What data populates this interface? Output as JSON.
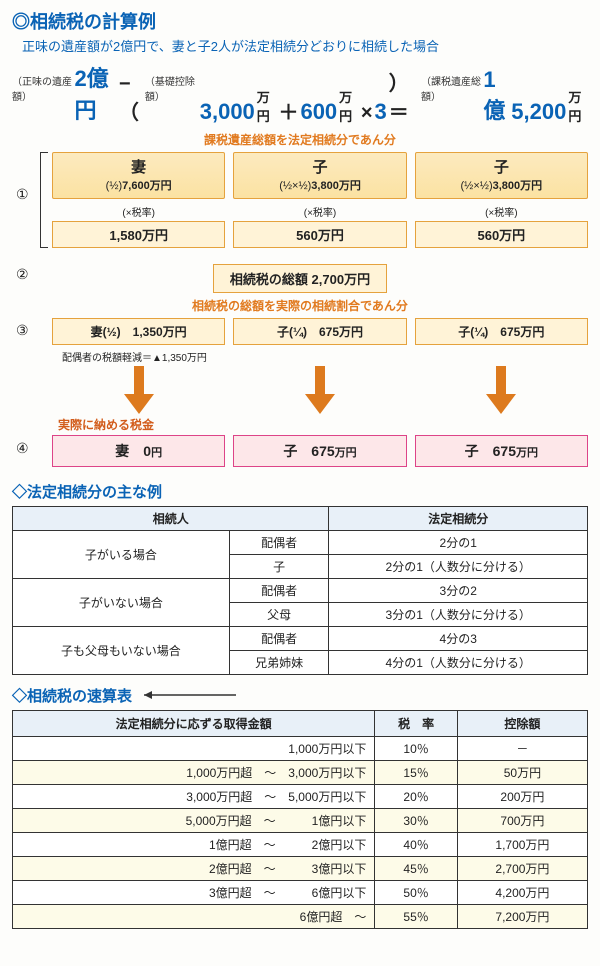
{
  "title": "◎相続税の計算例",
  "subtitle": "正味の遺産額が2億円で、妻と子2人が法定相続分どおりに相続した場合",
  "formula": {
    "label_net": "（正味の遺産額）",
    "label_deduction": "（基礎控除額）",
    "label_taxable": "（課税遺産総額）",
    "net": "2億円",
    "minus": "−（",
    "base": "3,000",
    "base_u": "万円",
    "plus": "＋",
    "per": "600",
    "per_u": "万円",
    "times": "×",
    "heirs": "3",
    "close": "）＝",
    "result_oku": "1億",
    "result_man": "5,200",
    "result_u": "万円"
  },
  "step1": {
    "caption": "課税遺産総額を法定相続分であん分",
    "heirs": [
      {
        "name": "妻",
        "frac": "(½)",
        "amount": "7,600万円",
        "rate_label": "(×税率)",
        "tax": "1,580万円"
      },
      {
        "name": "子",
        "frac": "(½×½)",
        "amount": "3,800万円",
        "rate_label": "(×税率)",
        "tax": "560万円"
      },
      {
        "name": "子",
        "frac": "(½×½)",
        "amount": "3,800万円",
        "rate_label": "(×税率)",
        "tax": "560万円"
      }
    ]
  },
  "step2": {
    "total_label": "相続税の総額",
    "total_value": "2,700万円"
  },
  "step3": {
    "caption": "相続税の総額を実際の相続割合であん分",
    "cells": [
      {
        "who": "妻(½)",
        "amt": "1,350万円"
      },
      {
        "who": "子(¼)",
        "amt": "675万円"
      },
      {
        "who": "子(¼)",
        "amt": "675万円"
      }
    ]
  },
  "reduction": "配偶者の税額軽減＝▲1,350万円",
  "actual_title": "実際に納める税金",
  "step4": [
    {
      "who": "妻",
      "amt": "0",
      "unit": "円"
    },
    {
      "who": "子",
      "amt": "675",
      "unit": "万円"
    },
    {
      "who": "子",
      "amt": "675",
      "unit": "万円"
    }
  ],
  "table1": {
    "title": "◇法定相続分の主な例",
    "head": [
      "相続人",
      "法定相続分"
    ],
    "rows": [
      {
        "group": "子がいる場合",
        "span": 2,
        "left": "配偶者",
        "right": "2分の1"
      },
      {
        "left": "子",
        "right": "2分の1（人数分に分ける）"
      },
      {
        "group": "子がいない場合",
        "span": 2,
        "left": "配偶者",
        "right": "3分の2"
      },
      {
        "left": "父母",
        "right": "3分の1（人数分に分ける）"
      },
      {
        "group": "子も父母もいない場合",
        "span": 2,
        "left": "配偶者",
        "right": "4分の3"
      },
      {
        "left": "兄弟姉妹",
        "right": "4分の1（人数分に分ける）"
      }
    ]
  },
  "table2": {
    "title": "◇相続税の速算表",
    "head": [
      "法定相続分に応ずる取得金額",
      "税　率",
      "控除額"
    ],
    "rows": [
      [
        "1,000万円以下",
        "10％",
        "－"
      ],
      [
        "1,000万円超　～　3,000万円以下",
        "15％",
        "50万円"
      ],
      [
        "3,000万円超　～　5,000万円以下",
        "20％",
        "200万円"
      ],
      [
        "5,000万円超　～　　　1億円以下",
        "30％",
        "700万円"
      ],
      [
        "1億円超　～　　　2億円以下",
        "40％",
        "1,700万円"
      ],
      [
        "2億円超　～　　　3億円以下",
        "45％",
        "2,700万円"
      ],
      [
        "3億円超　～　　　6億円以下",
        "50％",
        "4,200万円"
      ],
      [
        "6億円超　～",
        "55％",
        "7,200万円"
      ]
    ]
  },
  "colors": {
    "arrow": "#dd7a1e"
  }
}
